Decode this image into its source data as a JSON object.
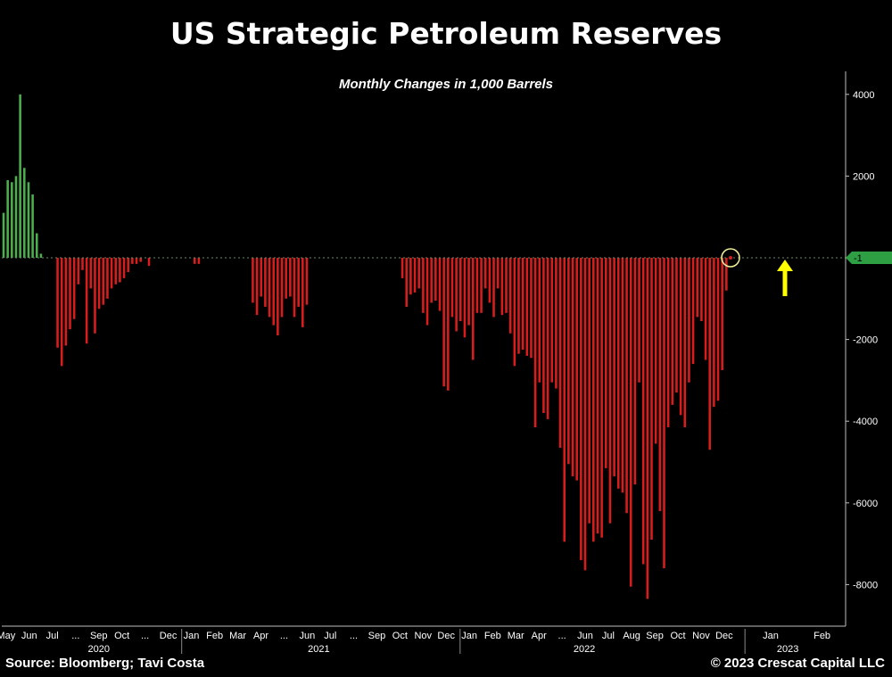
{
  "title": "US Strategic Petroleum Reserves",
  "subtitle": "Monthly Changes in 1,000 Barrels",
  "source": "Source: Bloomberg; Tavi Costa",
  "copyright": "© 2023 Crescat Capital LLC",
  "last_value_label": "-1",
  "colors": {
    "positive": "#4cae4c",
    "negative": "#d91d1d",
    "last_value_badge": "#2ea043",
    "arrow": "#ffff00",
    "highlight_circle": "#f2f29a",
    "axis": "#bfbfbf"
  },
  "chart_data": {
    "type": "bar",
    "title": "US Strategic Petroleum Reserves",
    "subtitle": "Monthly Changes in 1,000 Barrels",
    "x_axis": "time (weekly observations, May 2020 – Feb 2023)",
    "ylim": [
      -9000,
      4500
    ],
    "yticks": [
      4000,
      2000,
      0,
      -2000,
      -4000,
      -6000,
      -8000
    ],
    "ytick_labels": [
      "4000",
      "2000",
      "",
      "-2000",
      "-4000",
      "-6000",
      "-8000"
    ],
    "y_axis_side": "right",
    "month_labels": [
      {
        "label": "May",
        "x": 0
      },
      {
        "label": "Jun",
        "x": 1.08
      },
      {
        "label": "Jul",
        "x": 2.16
      },
      {
        "label": "...",
        "x": 3.25
      },
      {
        "label": "Sep",
        "x": 4.33
      },
      {
        "label": "Oct",
        "x": 5.41
      },
      {
        "label": "...",
        "x": 6.49
      },
      {
        "label": "Dec",
        "x": 7.57
      },
      {
        "label": "Jan",
        "x": 8.65
      },
      {
        "label": "Feb",
        "x": 9.74
      },
      {
        "label": "Mar",
        "x": 10.82
      },
      {
        "label": "Apr",
        "x": 11.9
      },
      {
        "label": "...",
        "x": 12.98
      },
      {
        "label": "Jun",
        "x": 14.06
      },
      {
        "label": "Jul",
        "x": 15.14
      },
      {
        "label": "...",
        "x": 16.23
      },
      {
        "label": "Sep",
        "x": 17.31
      },
      {
        "label": "Oct",
        "x": 18.39
      },
      {
        "label": "Nov",
        "x": 19.47
      },
      {
        "label": "Dec",
        "x": 20.55
      },
      {
        "label": "Jan",
        "x": 21.63
      },
      {
        "label": "Feb",
        "x": 22.72
      },
      {
        "label": "Mar",
        "x": 23.8
      },
      {
        "label": "Apr",
        "x": 24.88
      },
      {
        "label": "...",
        "x": 25.96
      },
      {
        "label": "Jun",
        "x": 27.04
      },
      {
        "label": "Jul",
        "x": 28.12
      },
      {
        "label": "Aug",
        "x": 29.21
      },
      {
        "label": "Sep",
        "x": 30.29
      },
      {
        "label": "Oct",
        "x": 31.37
      },
      {
        "label": "Nov",
        "x": 32.45
      },
      {
        "label": "Dec",
        "x": 33.53
      },
      {
        "label": "Jan",
        "x": 35.7
      },
      {
        "label": "Feb",
        "x": 38.1
      }
    ],
    "year_labels": [
      {
        "label": "2020",
        "x": 4.33
      },
      {
        "label": "2021",
        "x": 14.6
      },
      {
        "label": "2022",
        "x": 27.0
      },
      {
        "label": "2023",
        "x": 36.5
      }
    ],
    "year_separators": [
      8.2,
      21.2,
      34.5
    ],
    "x_range": [
      -0.2,
      39.2
    ],
    "series": [
      {
        "values": [
          1100,
          1900,
          1850,
          2000,
          4000,
          2200,
          1850,
          1550,
          600,
          100,
          0,
          0,
          0,
          -2200,
          -2650,
          -2150,
          -1750,
          -1500,
          -650,
          -300,
          -2100,
          -750,
          -1850,
          -1250,
          -1150,
          -1000,
          -750,
          -650,
          -600,
          -500,
          -350,
          -150,
          -150,
          -100,
          0,
          -200,
          0,
          0,
          0,
          0,
          0,
          0,
          0,
          0,
          0,
          0,
          -150,
          -150,
          0,
          0,
          0,
          0,
          0,
          0,
          0,
          0,
          0,
          0,
          0,
          0,
          -1100,
          -1400,
          -950,
          -1200,
          -1450,
          -1650,
          -1900,
          -1450,
          -1000,
          -950,
          -1450,
          -1200,
          -1700,
          -1150,
          0,
          0,
          0,
          0,
          0,
          0,
          0,
          0,
          0,
          0,
          0,
          0,
          0,
          0,
          0,
          0,
          0,
          0,
          0,
          0,
          0,
          0,
          -500,
          -1200,
          -900,
          -850,
          -750,
          -1350,
          -1650,
          -1100,
          -1050,
          -1300,
          -3150,
          -3250,
          -1450,
          -1800,
          -1550,
          -1950,
          -1650,
          -2500,
          -1350,
          -1350,
          -750,
          -1100,
          -1450,
          -750,
          -1400,
          -1350,
          -1850,
          -2650,
          -2350,
          -2250,
          -2400,
          -2450,
          -4150,
          -3050,
          -3800,
          -3950,
          -3050,
          -3200,
          -4650,
          -6950,
          -5050,
          -5350,
          -5450,
          -7400,
          -7650,
          -6500,
          -6950,
          -6750,
          -6850,
          -5150,
          -6500,
          -5350,
          -5650,
          -5750,
          -6250,
          -8050,
          -5550,
          -3050,
          -7500,
          -8350,
          -6900,
          -4550,
          -6200,
          -7600,
          -4150,
          -3600,
          -3300,
          -3850,
          -4150,
          -3050,
          -2600,
          -1450,
          -1550,
          -2500,
          -4700,
          -3650,
          -3500,
          -2750,
          -800,
          -1
        ]
      }
    ]
  }
}
